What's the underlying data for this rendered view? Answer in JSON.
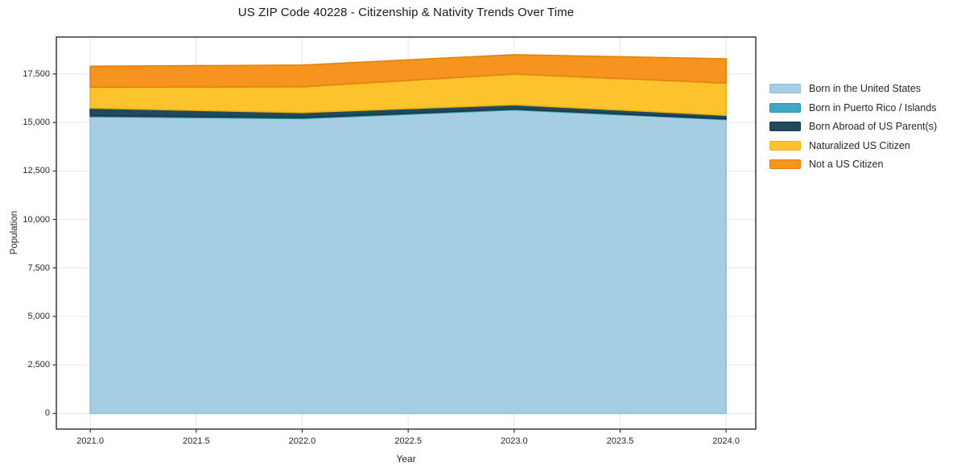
{
  "chart_data": {
    "type": "area",
    "stacked": true,
    "title": "US ZIP Code 40228 - Citizenship & Nativity Trends Over Time",
    "xlabel": "Year",
    "ylabel": "Population",
    "x": [
      2021,
      2022,
      2023,
      2024
    ],
    "series": [
      {
        "name": "Born in the United States",
        "values": [
          15300,
          15200,
          15650,
          15150
        ],
        "fill": "#a6cee3",
        "edge": "#8fbfd9"
      },
      {
        "name": "Born in Puerto Rico / Islands",
        "values": [
          50,
          45,
          40,
          35
        ],
        "fill": "#3ea8c4",
        "edge": "#2e93ae"
      },
      {
        "name": "Born Abroad of US Parent(s)",
        "values": [
          390,
          265,
          225,
          185
        ],
        "fill": "#1f4a5c",
        "edge": "#16394a"
      },
      {
        "name": "Naturalized US Citizen",
        "values": [
          1080,
          1330,
          1580,
          1660
        ],
        "fill": "#fdc32d",
        "edge": "#edb114"
      },
      {
        "name": "Not a US Citizen",
        "values": [
          1080,
          1120,
          1000,
          1250
        ],
        "fill": "#f79420",
        "edge": "#e2820d"
      }
    ],
    "xlim": [
      2020.84,
      2024.14
    ],
    "ylim": [
      -810,
      19405
    ],
    "x_tick_values": [
      2021.0,
      2021.5,
      2022.0,
      2022.5,
      2023.0,
      2023.5,
      2024.0
    ],
    "x_tick_labels": [
      "2021.0",
      "2021.5",
      "2022.0",
      "2022.5",
      "2023.0",
      "2023.5",
      "2024.0"
    ],
    "y_tick_values": [
      0,
      2500,
      5000,
      7500,
      10000,
      12500,
      15000,
      17500
    ],
    "y_tick_labels": [
      "0",
      "2,500",
      "5,000",
      "7,500",
      "10,000",
      "12,500",
      "15,000",
      "17,500"
    ],
    "grid": true,
    "legend_position": "right-outside"
  },
  "colors": {
    "background": "#ffffff",
    "grid": "#e7e7e7",
    "frame": "#1a1a1a",
    "tick": "#262626",
    "text": "#262626"
  }
}
